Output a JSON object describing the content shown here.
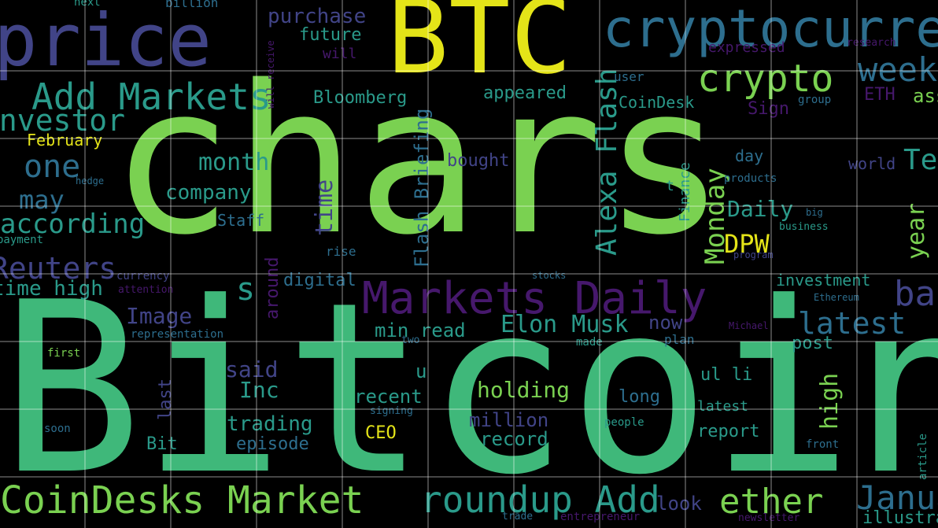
{
  "palette": {
    "background": "#000000",
    "yellow": "#e4e418",
    "lime": "#7ad151",
    "green": "#3fb87a",
    "teal": "#2a9a8a",
    "blue": "#2d6e8e",
    "indigo": "#414487",
    "purple": "#46186c",
    "grid": "#ffffff"
  },
  "gridlines": true,
  "words": [
    {
      "text": "chars",
      "color": "lime"
    },
    {
      "text": "Bitcoin",
      "color": "green"
    },
    {
      "text": "BTC",
      "color": "yellow"
    },
    {
      "text": "price",
      "color": "indigo"
    },
    {
      "text": "cryptocurrency",
      "color": "blue"
    },
    {
      "text": "crypto",
      "color": "lime"
    },
    {
      "text": "week",
      "color": "blue"
    },
    {
      "text": "Add Markets",
      "color": "teal"
    },
    {
      "text": "investor",
      "color": "teal"
    },
    {
      "text": "Markets Daily",
      "color": "purple"
    },
    {
      "text": "CoinDesks Market",
      "color": "lime"
    },
    {
      "text": "roundup Add",
      "color": "teal"
    },
    {
      "text": "ether",
      "color": "lime"
    },
    {
      "text": "January",
      "color": "blue"
    },
    {
      "text": "latest",
      "color": "blue"
    },
    {
      "text": "Elon Musk",
      "color": "teal"
    },
    {
      "text": "Alexa Flash",
      "color": "teal"
    },
    {
      "text": "Flash Briefing",
      "color": "blue"
    },
    {
      "text": "one",
      "color": "blue"
    },
    {
      "text": "may",
      "color": "blue"
    },
    {
      "text": "according",
      "color": "teal"
    },
    {
      "text": "Reuters",
      "color": "indigo"
    },
    {
      "text": "time high",
      "color": "teal"
    },
    {
      "text": "month",
      "color": "teal"
    },
    {
      "text": "company",
      "color": "teal"
    },
    {
      "text": "Daily",
      "color": "teal"
    },
    {
      "text": "Monday",
      "color": "lime"
    },
    {
      "text": "DPW",
      "color": "yellow"
    },
    {
      "text": "year",
      "color": "lime"
    },
    {
      "text": "Image",
      "color": "indigo"
    },
    {
      "text": "said",
      "color": "indigo"
    },
    {
      "text": "Inc",
      "color": "teal"
    },
    {
      "text": "holding",
      "color": "lime"
    },
    {
      "text": "recent",
      "color": "teal"
    },
    {
      "text": "trading",
      "color": "teal"
    },
    {
      "text": "min read",
      "color": "teal"
    },
    {
      "text": "million",
      "color": "indigo"
    },
    {
      "text": "record",
      "color": "teal"
    },
    {
      "text": "episode",
      "color": "blue"
    },
    {
      "text": "purchase",
      "color": "indigo"
    },
    {
      "text": "future",
      "color": "teal"
    },
    {
      "text": "Bloomberg",
      "color": "teal"
    },
    {
      "text": "appeared",
      "color": "teal"
    },
    {
      "text": "bought",
      "color": "indigo"
    },
    {
      "text": "time",
      "color": "indigo"
    },
    {
      "text": "digital",
      "color": "blue"
    },
    {
      "text": "February",
      "color": "yellow"
    },
    {
      "text": "Staff",
      "color": "blue"
    },
    {
      "text": "CoinDesk",
      "color": "teal"
    },
    {
      "text": "investment",
      "color": "teal"
    },
    {
      "text": "high",
      "color": "lime"
    },
    {
      "text": "long",
      "color": "blue"
    },
    {
      "text": "report",
      "color": "teal"
    },
    {
      "text": "post",
      "color": "teal"
    },
    {
      "text": "now",
      "color": "indigo"
    },
    {
      "text": "look",
      "color": "indigo"
    },
    {
      "text": "day",
      "color": "blue"
    },
    {
      "text": "world",
      "color": "indigo"
    },
    {
      "text": "Sign",
      "color": "purple"
    },
    {
      "text": "ETH",
      "color": "purple"
    },
    {
      "text": "CEO",
      "color": "yellow"
    },
    {
      "text": "Bit",
      "color": "teal"
    },
    {
      "text": "last",
      "color": "indigo"
    },
    {
      "text": "ul li",
      "color": "teal"
    },
    {
      "text": "Finance",
      "color": "teal"
    },
    {
      "text": "around",
      "color": "purple"
    },
    {
      "text": "will",
      "color": "purple"
    },
    {
      "text": "rise",
      "color": "blue"
    },
    {
      "text": "u",
      "color": "teal"
    },
    {
      "text": "s",
      "color": "teal"
    },
    {
      "text": "bank",
      "color": "indigo"
    },
    {
      "text": "billion",
      "color": "blue"
    },
    {
      "text": "next",
      "color": "teal"
    },
    {
      "text": "expressed",
      "color": "purple"
    },
    {
      "text": "user",
      "color": "blue"
    },
    {
      "text": "group",
      "color": "blue"
    },
    {
      "text": "research",
      "color": "purple"
    },
    {
      "text": "business",
      "color": "teal"
    },
    {
      "text": "program",
      "color": "indigo"
    },
    {
      "text": "products",
      "color": "blue"
    },
    {
      "text": "big",
      "color": "blue"
    },
    {
      "text": "stocks",
      "color": "blue"
    },
    {
      "text": "Ethereum",
      "color": "blue"
    },
    {
      "text": "Michael",
      "color": "purple"
    },
    {
      "text": "plan",
      "color": "blue"
    },
    {
      "text": "made",
      "color": "teal"
    },
    {
      "text": "two",
      "color": "blue"
    },
    {
      "text": "first",
      "color": "lime"
    },
    {
      "text": "soon",
      "color": "blue"
    },
    {
      "text": "people",
      "color": "teal"
    },
    {
      "text": "front",
      "color": "blue"
    },
    {
      "text": "article",
      "color": "teal"
    },
    {
      "text": "newsletter",
      "color": "purple"
    },
    {
      "text": "illustration",
      "color": "teal"
    },
    {
      "text": "entrepreneur",
      "color": "purple"
    },
    {
      "text": "trade",
      "color": "blue"
    },
    {
      "text": "currency",
      "color": "indigo"
    },
    {
      "text": "attention",
      "color": "purple"
    },
    {
      "text": "payment",
      "color": "teal"
    },
    {
      "text": "hedge",
      "color": "blue"
    },
    {
      "text": "representation",
      "color": "blue"
    },
    {
      "text": "signing",
      "color": "blue"
    },
    {
      "text": "latest",
      "color": "teal"
    },
    {
      "text": "will receive",
      "color": "purple"
    },
    {
      "text": "asset",
      "color": "lime"
    },
    {
      "text": "Tesla",
      "color": "teal"
    },
    {
      "text": "t",
      "color": "teal"
    }
  ]
}
